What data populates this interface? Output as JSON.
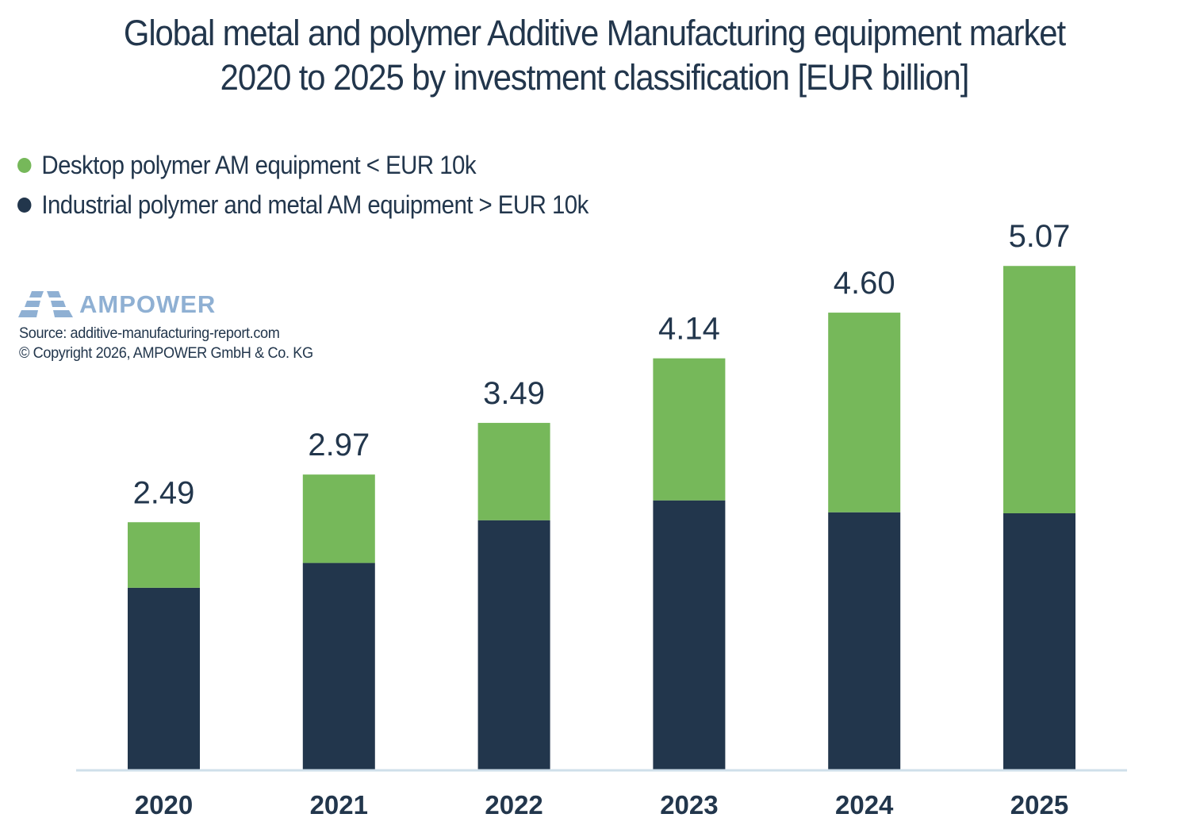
{
  "title_line1": "Global metal and polymer Additive Manufacturing equipment market",
  "title_line2": "2020 to 2025 by investment classification [EUR billion]",
  "legend": [
    {
      "label": "Desktop polymer AM equipment < EUR 10k",
      "color": "#76b85a"
    },
    {
      "label": "Industrial polymer and metal AM equipment > EUR 10k",
      "color": "#22364c"
    }
  ],
  "logo": {
    "text": "AMPOWER",
    "icon": "ampower-logo-icon",
    "color": "#8fb0d3"
  },
  "source": "Source: additive-manufacturing-report.com",
  "copyright": "© Copyright 2026, AMPOWER GmbH & Co. KG",
  "chart_data": {
    "type": "bar",
    "stacked": true,
    "title": "Global metal and polymer Additive Manufacturing equipment market 2020 to 2025 by investment classification [EUR billion]",
    "xlabel": "",
    "ylabel": "",
    "categories": [
      "2020",
      "2021",
      "2022",
      "2023",
      "2024",
      "2025"
    ],
    "series": [
      {
        "name": "Industrial polymer and metal AM equipment > EUR 10k",
        "color": "#22364c",
        "values": [
          1.83,
          2.08,
          2.51,
          2.71,
          2.59,
          2.58
        ]
      },
      {
        "name": "Desktop polymer AM equipment < EUR 10k",
        "color": "#76b85a",
        "values": [
          0.66,
          0.89,
          0.98,
          1.43,
          2.01,
          2.49
        ]
      }
    ],
    "totals": [
      2.49,
      2.97,
      3.49,
      4.14,
      4.6,
      5.07
    ],
    "total_labels": [
      "2.49",
      "2.97",
      "3.49",
      "4.14",
      "4.60",
      "5.07"
    ],
    "ylim": [
      0,
      5.07
    ],
    "grid": false,
    "legend_position": "top-left",
    "axis_color": "#cfdfea"
  }
}
